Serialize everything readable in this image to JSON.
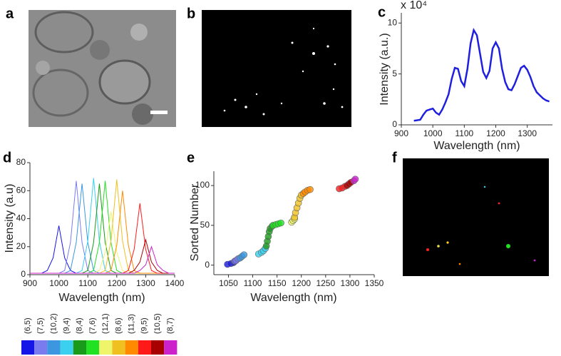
{
  "images": [
    {
      "panel": "a"
    },
    {
      "panel": "b"
    },
    {
      "panel": "f"
    }
  ],
  "chart_data": [
    {
      "type": "line",
      "panel": "c",
      "y_multiplier": "x 10⁴",
      "xlabel": "Wavelength (nm)",
      "ylabel": "Intensity (a.u.)",
      "x": [
        940,
        960,
        970,
        980,
        990,
        1000,
        1010,
        1020,
        1030,
        1040,
        1050,
        1060,
        1070,
        1080,
        1090,
        1100,
        1110,
        1120,
        1130,
        1140,
        1150,
        1160,
        1170,
        1180,
        1190,
        1200,
        1210,
        1220,
        1230,
        1240,
        1250,
        1260,
        1270,
        1280,
        1290,
        1300,
        1310,
        1320,
        1330,
        1340,
        1350,
        1360,
        1370
      ],
      "values": [
        0.4,
        0.5,
        1.0,
        1.4,
        1.5,
        1.6,
        1.2,
        1.0,
        1.5,
        2.2,
        3.0,
        4.5,
        5.6,
        5.5,
        4.3,
        3.8,
        5.5,
        8.0,
        9.3,
        8.8,
        7.0,
        5.2,
        4.6,
        5.3,
        7.5,
        8.1,
        7.5,
        5.5,
        4.2,
        3.5,
        3.4,
        4.0,
        4.8,
        5.6,
        5.8,
        5.4,
        4.7,
        3.8,
        3.2,
        2.9,
        2.6,
        2.4,
        2.3
      ],
      "color": "#1f1fe0",
      "xlim": [
        900,
        1380
      ],
      "ylim": [
        0,
        11
      ],
      "xticks": [
        900,
        1000,
        1100,
        1200,
        1300
      ],
      "yticks": [
        0,
        5,
        10
      ]
    },
    {
      "type": "line",
      "panel": "d",
      "xlabel": "Wavelength (nm)",
      "ylabel": "Intensity (a.u)",
      "x": [
        900,
        920,
        940,
        960,
        980,
        1000,
        1020,
        1040,
        1060,
        1080,
        1100,
        1120,
        1140,
        1160,
        1180,
        1200,
        1220,
        1240,
        1260,
        1280,
        1300,
        1320,
        1340,
        1360,
        1380,
        1400
      ],
      "series": [
        {
          "name": "(6,5)",
          "color": "#1515e8",
          "values": [
            1,
            1,
            1,
            3,
            12,
            35,
            12,
            3,
            1,
            1,
            1,
            1,
            1,
            1,
            1,
            1,
            1,
            1,
            1,
            1,
            1,
            1,
            1,
            1,
            1,
            1
          ]
        },
        {
          "name": "(7,5)",
          "color": "#7b7bf0",
          "values": [
            1,
            1,
            1,
            1,
            1,
            1,
            3,
            23,
            67,
            23,
            3,
            1,
            1,
            1,
            1,
            1,
            1,
            1,
            1,
            1,
            1,
            1,
            1,
            1,
            1,
            1
          ]
        },
        {
          "name": "(10,2)",
          "color": "#3b97e0",
          "values": [
            1,
            1,
            1,
            1,
            1,
            1,
            1,
            3,
            23,
            65,
            23,
            3,
            1,
            1,
            1,
            1,
            1,
            1,
            1,
            1,
            1,
            1,
            1,
            1,
            1,
            1
          ]
        },
        {
          "name": "(9,4)",
          "color": "#3ad0ee",
          "values": [
            1,
            1,
            1,
            1,
            1,
            1,
            1,
            1,
            1,
            3,
            24,
            69,
            24,
            3,
            1,
            1,
            1,
            1,
            1,
            1,
            1,
            1,
            1,
            1,
            1,
            1
          ]
        },
        {
          "name": "(8,4)",
          "color": "#1a9a1a",
          "values": [
            1,
            1,
            1,
            1,
            1,
            1,
            1,
            1,
            1,
            1,
            3,
            23,
            65,
            23,
            3,
            1,
            1,
            1,
            1,
            1,
            1,
            1,
            1,
            1,
            1,
            1
          ]
        },
        {
          "name": "(7,6)",
          "color": "#22e022",
          "values": [
            1,
            1,
            1,
            1,
            1,
            1,
            1,
            1,
            1,
            1,
            1,
            3,
            23,
            67,
            23,
            3,
            1,
            1,
            1,
            1,
            1,
            1,
            1,
            1,
            1,
            1
          ]
        },
        {
          "name": "(12,1)",
          "color": "#eef56a",
          "values": [
            1,
            1,
            1,
            1,
            1,
            1,
            1,
            1,
            1,
            1,
            1,
            1,
            3,
            16,
            45,
            16,
            3,
            1,
            1,
            1,
            1,
            1,
            1,
            1,
            1,
            1
          ]
        },
        {
          "name": "(8,6)",
          "color": "#f0c020",
          "values": [
            1,
            1,
            1,
            1,
            1,
            1,
            1,
            1,
            1,
            1,
            1,
            1,
            1,
            3,
            24,
            68,
            24,
            3,
            1,
            1,
            1,
            1,
            1,
            1,
            1,
            1
          ]
        },
        {
          "name": "(11,3)",
          "color": "#ff8a00",
          "values": [
            1,
            1,
            1,
            1,
            1,
            1,
            1,
            1,
            1,
            1,
            1,
            1,
            1,
            1,
            3,
            21,
            60,
            21,
            3,
            1,
            1,
            1,
            1,
            1,
            1,
            1
          ]
        },
        {
          "name": "(9,5)",
          "color": "#ff1a1a",
          "values": [
            1,
            1,
            1,
            1,
            1,
            1,
            1,
            1,
            1,
            1,
            1,
            1,
            1,
            1,
            1,
            1,
            1,
            3,
            18,
            51,
            18,
            3,
            1,
            1,
            1,
            1
          ]
        },
        {
          "name": "(10,5)",
          "color": "#a80000",
          "values": [
            1,
            1,
            1,
            1,
            1,
            1,
            1,
            1,
            1,
            1,
            1,
            1,
            1,
            1,
            1,
            1,
            1,
            1,
            3,
            9,
            25,
            9,
            3,
            1,
            1,
            1
          ]
        },
        {
          "name": "(8,7)",
          "color": "#cc22cc",
          "values": [
            1,
            1,
            1,
            1,
            1,
            1,
            1,
            1,
            1,
            1,
            1,
            1,
            1,
            1,
            1,
            1,
            1,
            1,
            1,
            3,
            7,
            20,
            7,
            3,
            1,
            1
          ]
        }
      ],
      "xlim": [
        900,
        1400
      ],
      "ylim": [
        0,
        80
      ],
      "xticks": [
        900,
        1000,
        1100,
        1200,
        1300,
        1400
      ],
      "yticks": [
        0,
        20,
        40,
        60,
        80
      ]
    },
    {
      "type": "scatter",
      "panel": "e",
      "xlabel": "Wavelength (nm)",
      "ylabel": "Sorted Number",
      "series": [
        {
          "color": "#1515e8",
          "x": [
            1048,
            1055,
            1060,
            1062
          ],
          "values": [
            1,
            2,
            3,
            4
          ]
        },
        {
          "color": "#7b7bf0",
          "x": [
            1063,
            1066,
            1070
          ],
          "values": [
            5,
            6,
            8
          ]
        },
        {
          "color": "#3b97e0",
          "x": [
            1074,
            1078,
            1082
          ],
          "values": [
            9,
            11,
            13
          ]
        },
        {
          "color": "#3ad0ee",
          "x": [
            1112,
            1118,
            1122,
            1126
          ],
          "values": [
            14,
            16,
            18,
            21
          ]
        },
        {
          "color": "#1a9a1a",
          "x": [
            1128,
            1130,
            1132,
            1134,
            1136,
            1140
          ],
          "values": [
            24,
            30,
            36,
            42,
            46,
            49
          ]
        },
        {
          "color": "#22e022",
          "x": [
            1142,
            1148,
            1153,
            1158
          ],
          "values": [
            50,
            51,
            52,
            53
          ]
        },
        {
          "color": "#eef56a",
          "x": [
            1180,
            1183,
            1186
          ],
          "values": [
            54,
            56,
            58
          ]
        },
        {
          "color": "#f0c020",
          "x": [
            1186,
            1188,
            1191,
            1194,
            1197,
            1200
          ],
          "values": [
            60,
            66,
            72,
            78,
            84,
            88
          ]
        },
        {
          "color": "#ff8a00",
          "x": [
            1204,
            1208,
            1213,
            1218
          ],
          "values": [
            90,
            92,
            94,
            95
          ]
        },
        {
          "color": "#ff1a1a",
          "x": [
            1278,
            1284,
            1290
          ],
          "values": [
            96,
            97,
            99
          ]
        },
        {
          "color": "#a80000",
          "x": [
            1294,
            1298,
            1302
          ],
          "values": [
            100,
            102,
            104
          ]
        },
        {
          "color": "#cc22cc",
          "x": [
            1308,
            1311
          ],
          "values": [
            106,
            108
          ]
        }
      ],
      "xlim": [
        1020,
        1350
      ],
      "ylim": [
        -12,
        118
      ],
      "xticks": [
        1050,
        1100,
        1150,
        1200,
        1250,
        1300,
        1350
      ],
      "yticks": [
        0,
        50,
        100
      ]
    }
  ]
}
